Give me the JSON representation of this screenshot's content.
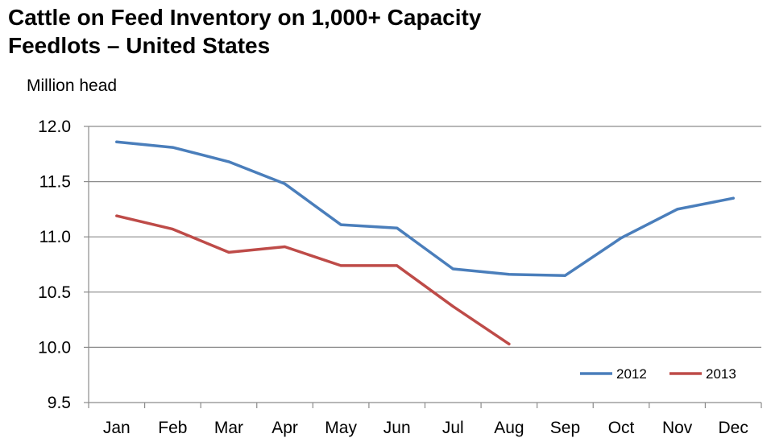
{
  "chart_data": {
    "type": "line",
    "title_lines": [
      "Cattle on Feed Inventory on 1,000+ Capacity",
      "Feedlots – United States"
    ],
    "ylabel": "Million head",
    "xlabel": "",
    "categories": [
      "Jan",
      "Feb",
      "Mar",
      "Apr",
      "May",
      "Jun",
      "Jul",
      "Aug",
      "Sep",
      "Oct",
      "Nov",
      "Dec"
    ],
    "ylim": [
      9.5,
      12.0
    ],
    "yticks": [
      "9.5",
      "10.0",
      "10.5",
      "11.0",
      "11.5",
      "12.0"
    ],
    "grid": "horizontal",
    "legend_position": "bottom-right",
    "series": [
      {
        "name": "2012",
        "color": "#4a7ebb",
        "values": [
          11.86,
          11.81,
          11.68,
          11.48,
          11.11,
          11.08,
          10.71,
          10.66,
          10.65,
          10.99,
          11.25,
          11.35
        ]
      },
      {
        "name": "2013",
        "color": "#be4b48",
        "values": [
          11.19,
          11.07,
          10.86,
          10.91,
          10.74,
          10.74,
          10.37,
          10.03,
          null,
          null,
          null,
          null
        ]
      }
    ]
  }
}
